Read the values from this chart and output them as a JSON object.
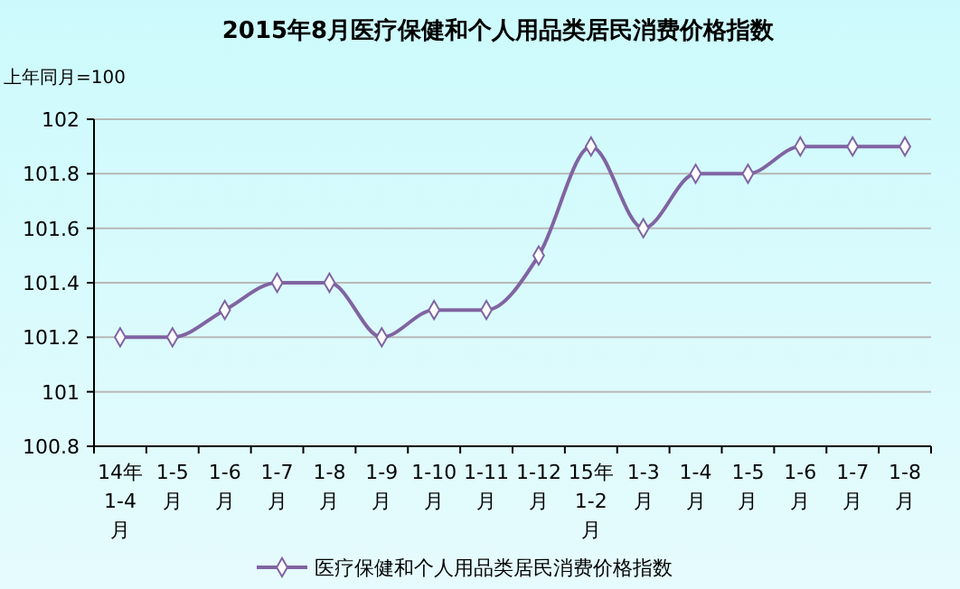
{
  "chart_data": {
    "type": "line",
    "title": "2015年8月医疗保健和个人用品类居民消费价格指数",
    "ylabel": "上年同月=100",
    "categories": [
      "14年1-4月",
      "1-5月",
      "1-6月",
      "1-7月",
      "1-8月",
      "1-9月",
      "1-10月",
      "1-11月",
      "1-12月",
      "15年1-2月",
      "1-3月",
      "1-4月",
      "1-5月",
      "1-6月",
      "1-7月",
      "1-8月"
    ],
    "series": [
      {
        "name": "医疗保健和个人用品类居民消费价格指数",
        "color": "#8064a2",
        "values": [
          101.2,
          101.2,
          101.3,
          101.4,
          101.4,
          101.2,
          101.3,
          101.3,
          101.5,
          101.9,
          101.6,
          101.8,
          101.8,
          101.9,
          101.9,
          101.9
        ]
      }
    ],
    "ylim": [
      100.8,
      102
    ],
    "yticks": [
      100.8,
      101,
      101.2,
      101.4,
      101.6,
      101.8,
      102
    ],
    "grid": "y",
    "legend": "bottom",
    "marker": "diamond",
    "line_style": "solid"
  }
}
